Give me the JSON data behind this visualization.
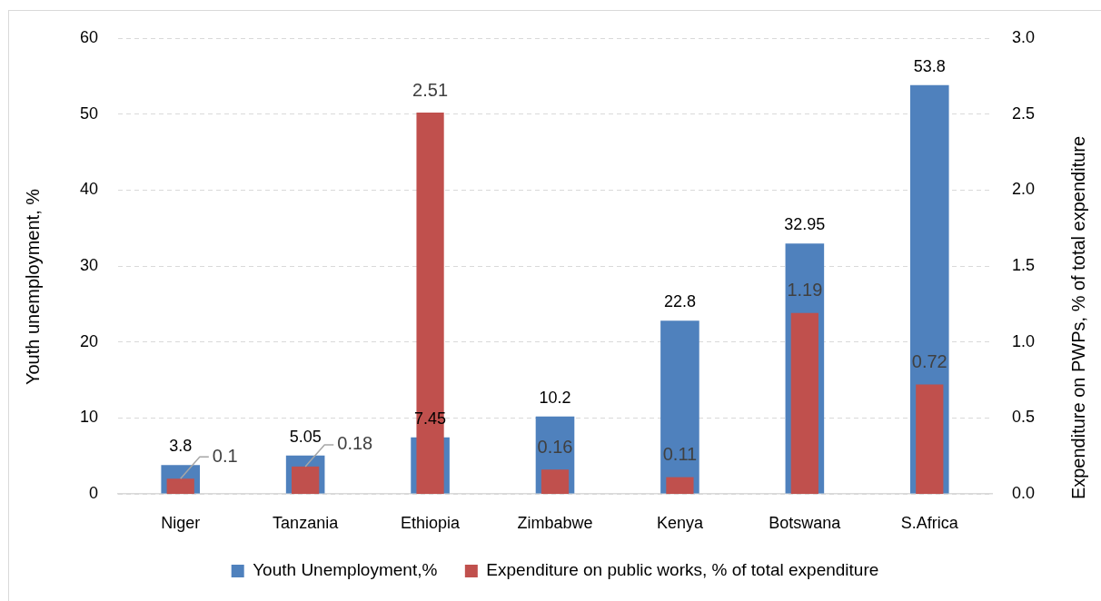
{
  "chart_data": {
    "type": "bar",
    "categories": [
      "Niger",
      "Tanzania",
      "Ethiopia",
      "Zimbabwe",
      "Kenya",
      "Botswana",
      "S.Africa"
    ],
    "series": [
      {
        "name": "Youth Unemployment,%",
        "color": "#4f81bd",
        "values": [
          3.8,
          5.05,
          7.45,
          10.2,
          22.8,
          32.95,
          53.8
        ]
      },
      {
        "name": "Expenditure on public works, % of total expenditure",
        "color": "#c0504d",
        "axis": "y2",
        "values": [
          0.1,
          0.18,
          2.51,
          0.16,
          0.11,
          1.19,
          0.72
        ]
      }
    ],
    "ylabel": "Youth unemployment, %",
    "y2label": "Expenditure on PWPs, % of total expenditure",
    "ylim": [
      0,
      60
    ],
    "yticks": [
      0,
      10,
      20,
      30,
      40,
      50,
      60
    ],
    "y2lim": [
      0,
      3
    ],
    "y2ticks": [
      {
        "value": 0,
        "label": "0.0"
      },
      0.5,
      {
        "value": 1,
        "label": "1.0"
      },
      1.5,
      {
        "value": 2,
        "label": "2.0"
      },
      2.5,
      {
        "value": 3,
        "label": "3.0"
      }
    ],
    "data_labels": true,
    "grid": "y",
    "legend": "bottom"
  }
}
